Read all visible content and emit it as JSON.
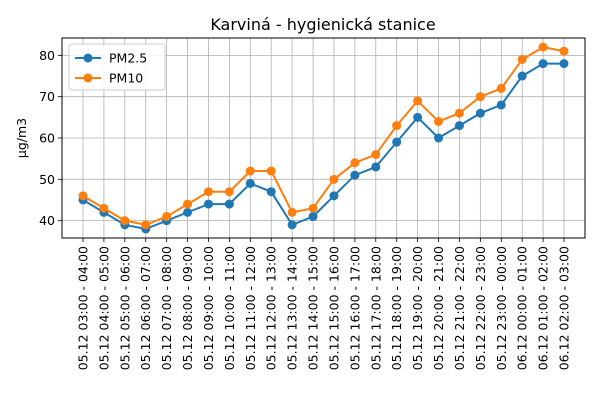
{
  "chart_data": {
    "type": "line",
    "title": "Karviná - hygienická stanice",
    "xlabel": "",
    "ylabel": "µg/m3",
    "categories": [
      "05.12 03:00 - 04:00",
      "05.12 04:00 - 05:00",
      "05.12 05:00 - 06:00",
      "05.12 06:00 - 07:00",
      "05.12 07:00 - 08:00",
      "05.12 08:00 - 09:00",
      "05.12 09:00 - 10:00",
      "05.12 10:00 - 11:00",
      "05.12 11:00 - 12:00",
      "05.12 12:00 - 13:00",
      "05.12 13:00 - 14:00",
      "05.12 14:00 - 15:00",
      "05.12 15:00 - 16:00",
      "05.12 16:00 - 17:00",
      "05.12 17:00 - 18:00",
      "05.12 18:00 - 19:00",
      "05.12 19:00 - 20:00",
      "05.12 20:00 - 21:00",
      "05.12 21:00 - 22:00",
      "05.12 22:00 - 23:00",
      "05.12 23:00 - 00:00",
      "06.12 00:00 - 01:00",
      "06.12 01:00 - 02:00",
      "06.12 02:00 - 03:00"
    ],
    "series": [
      {
        "name": "PM2.5",
        "color": "#1f77b4",
        "values": [
          45,
          42,
          39,
          38,
          40,
          42,
          44,
          44,
          49,
          47,
          39,
          41,
          46,
          51,
          53,
          59,
          65,
          60,
          63,
          66,
          68,
          75,
          78,
          78
        ]
      },
      {
        "name": "PM10",
        "color": "#ff7f0e",
        "values": [
          46,
          43,
          40,
          39,
          41,
          44,
          47,
          47,
          52,
          52,
          42,
          43,
          50,
          54,
          56,
          63,
          69,
          64,
          66,
          70,
          72,
          79,
          82,
          81
        ]
      }
    ],
    "ylim": [
      35.8,
      84.2
    ],
    "yticks": [
      40,
      50,
      60,
      70,
      80
    ],
    "grid": true,
    "legend": "upper-left"
  }
}
